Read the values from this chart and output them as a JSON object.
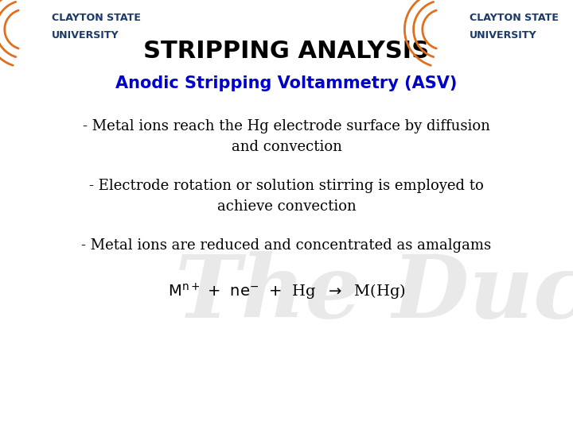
{
  "title": "STRIPPING ANALYSIS",
  "title_fontsize": 22,
  "title_color": "#000000",
  "title_weight": "bold",
  "subtitle": "Anodic Stripping Voltammetry (ASV)",
  "subtitle_color": "#0000cc",
  "subtitle_fontsize": 15,
  "subtitle_weight": "bold",
  "bullet1": "- Metal ions reach the Hg electrode surface by diffusion\nand convection",
  "bullet2": "- Electrode rotation or solution stirring is employed to\nachieve convection",
  "bullet3": "- Metal ions are reduced and concentrated as amalgams",
  "bullet_fontsize": 13,
  "bullet_color": "#000000",
  "eq_fontsize": 14,
  "background_color": "#ffffff",
  "logo_arc_color": "#e07020",
  "logo_text_color": "#1a3a6b",
  "watermark_color": "#d0d0d0"
}
